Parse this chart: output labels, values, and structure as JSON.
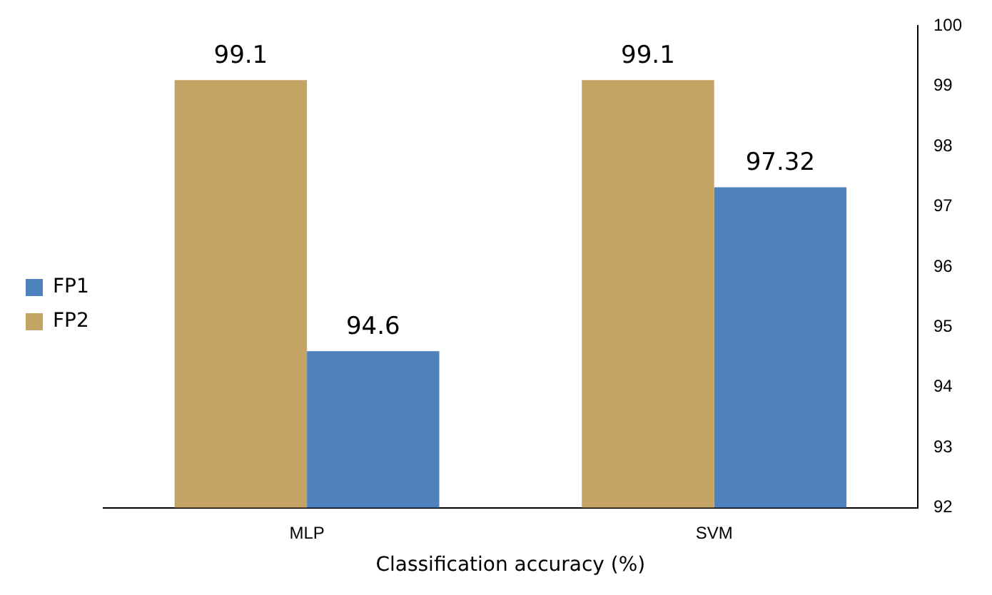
{
  "chart_data": {
    "type": "bar",
    "xlabel": "Classification accuracy (%)",
    "categories": [
      "MLP",
      "SVM"
    ],
    "series": [
      {
        "name": "FP2",
        "color": "#c4a465",
        "values": [
          99.1,
          99.1
        ]
      },
      {
        "name": "FP1",
        "color": "#4f81bd",
        "values": [
          94.6,
          97.32
        ]
      }
    ],
    "ylim": [
      92,
      100
    ],
    "yticks": [
      92,
      93,
      94,
      95,
      96,
      97,
      98,
      99,
      100
    ],
    "grid": false,
    "legend": "left",
    "data_labels": true
  }
}
